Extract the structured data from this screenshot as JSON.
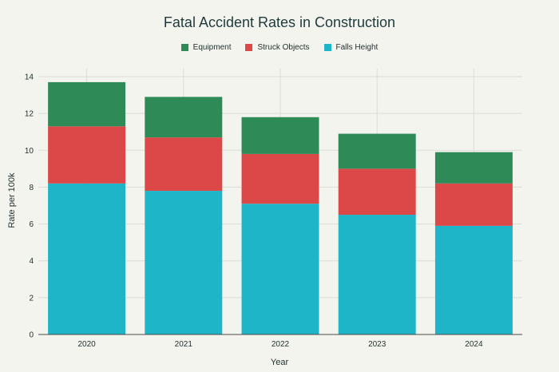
{
  "chart_data": {
    "type": "bar",
    "stacked": true,
    "title": "Fatal Accident Rates in Construction",
    "xlabel": "Year",
    "ylabel": "Rate per 100k",
    "categories": [
      "2020",
      "2021",
      "2022",
      "2023",
      "2024"
    ],
    "ylim": [
      0,
      14
    ],
    "yticks": [
      0,
      2,
      4,
      6,
      8,
      10,
      12,
      14
    ],
    "grid": true,
    "legend_position": "top-center",
    "series": [
      {
        "name": "Falls Height",
        "color": "#1fb5c9",
        "values": [
          8.2,
          7.8,
          7.1,
          6.5,
          5.9
        ]
      },
      {
        "name": "Struck Objects",
        "color": "#dc4848",
        "values": [
          3.1,
          2.9,
          2.7,
          2.5,
          2.3
        ]
      },
      {
        "name": "Equipment",
        "color": "#2e8b57",
        "values": [
          2.4,
          2.2,
          2.0,
          1.9,
          1.7
        ]
      }
    ],
    "legend_order": [
      "Equipment",
      "Struck Objects",
      "Falls Height"
    ]
  }
}
